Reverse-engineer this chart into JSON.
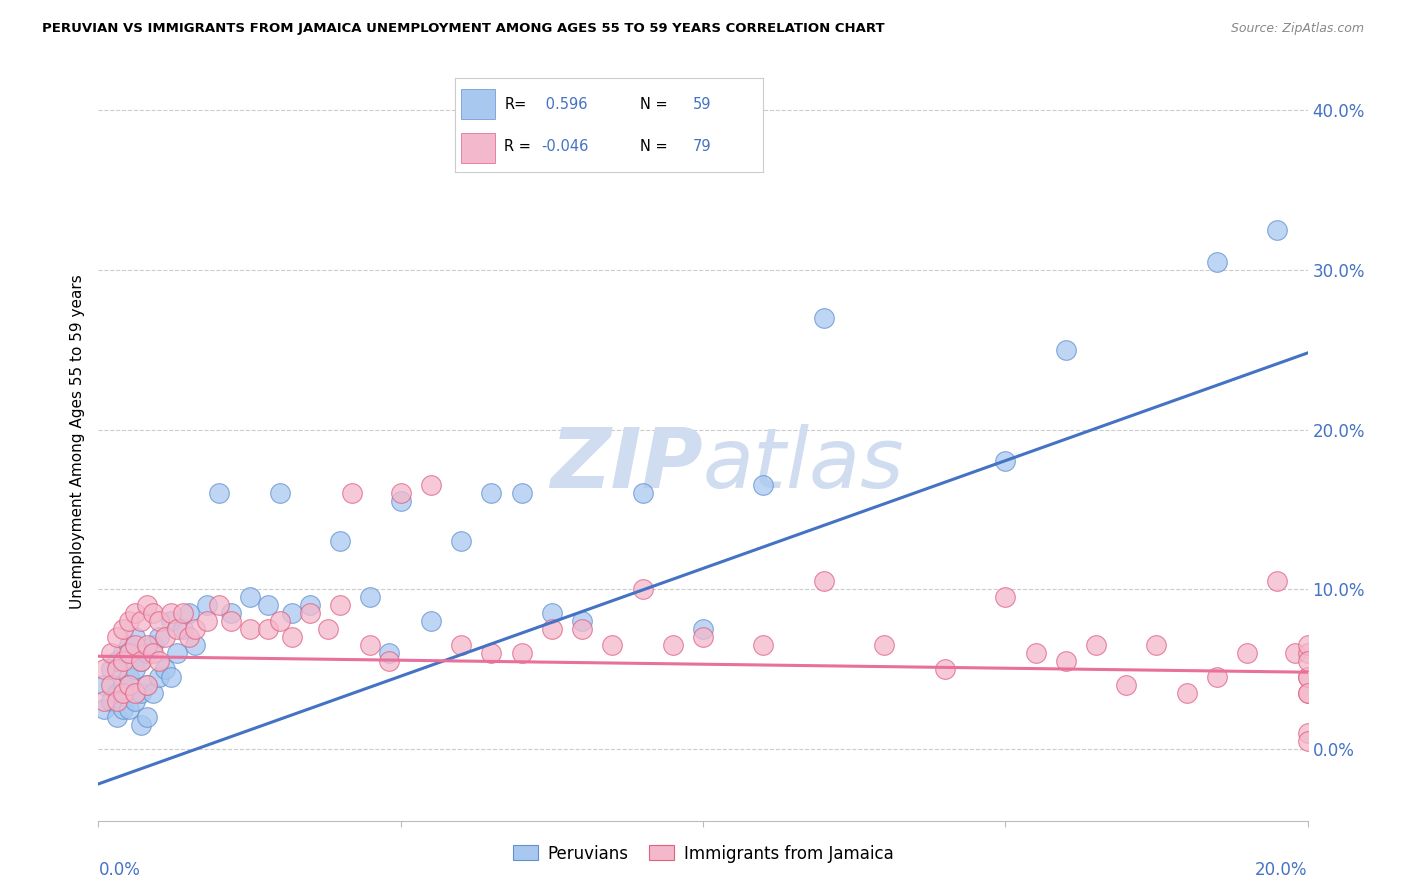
{
  "title": "PERUVIAN VS IMMIGRANTS FROM JAMAICA UNEMPLOYMENT AMONG AGES 55 TO 59 YEARS CORRELATION CHART",
  "source": "Source: ZipAtlas.com",
  "ylabel": "Unemployment Among Ages 55 to 59 years",
  "legend_label1": "Peruvians",
  "legend_label2": "Immigrants from Jamaica",
  "R1": 0.596,
  "N1": 59,
  "R2": -0.046,
  "N2": 79,
  "color_blue": "#A8C8F0",
  "color_pink": "#F4B8CC",
  "color_blue_edge": "#6090D0",
  "color_pink_edge": "#E06080",
  "color_line_blue": "#4472C4",
  "color_line_pink": "#E8709A",
  "watermark_color": "#D0DCF0",
  "xmin": 0.0,
  "xmax": 0.2,
  "ymin": -0.045,
  "ymax": 0.43,
  "yticks_right": [
    0.0,
    0.1,
    0.2,
    0.3,
    0.4
  ],
  "ytick_labels_right": [
    "0.0%",
    "10.0%",
    "20.0%",
    "30.0%",
    "40.0%"
  ],
  "blue_slope": 1.35,
  "blue_intercept": -0.022,
  "pink_slope": -0.05,
  "pink_intercept": 0.058,
  "blue_x": [
    0.001,
    0.001,
    0.002,
    0.002,
    0.003,
    0.003,
    0.003,
    0.004,
    0.004,
    0.004,
    0.005,
    0.005,
    0.005,
    0.006,
    0.006,
    0.006,
    0.007,
    0.007,
    0.007,
    0.008,
    0.008,
    0.008,
    0.009,
    0.009,
    0.01,
    0.01,
    0.011,
    0.012,
    0.012,
    0.013,
    0.014,
    0.015,
    0.016,
    0.018,
    0.02,
    0.022,
    0.025,
    0.028,
    0.03,
    0.032,
    0.035,
    0.04,
    0.045,
    0.048,
    0.05,
    0.055,
    0.06,
    0.065,
    0.07,
    0.075,
    0.08,
    0.09,
    0.1,
    0.11,
    0.12,
    0.15,
    0.16,
    0.185,
    0.195
  ],
  "blue_y": [
    0.04,
    0.025,
    0.05,
    0.03,
    0.055,
    0.035,
    0.02,
    0.06,
    0.04,
    0.025,
    0.065,
    0.045,
    0.025,
    0.07,
    0.05,
    0.03,
    0.055,
    0.035,
    0.015,
    0.06,
    0.04,
    0.02,
    0.065,
    0.035,
    0.07,
    0.045,
    0.05,
    0.08,
    0.045,
    0.06,
    0.075,
    0.085,
    0.065,
    0.09,
    0.16,
    0.085,
    0.095,
    0.09,
    0.16,
    0.085,
    0.09,
    0.13,
    0.095,
    0.06,
    0.155,
    0.08,
    0.13,
    0.16,
    0.16,
    0.085,
    0.08,
    0.16,
    0.075,
    0.165,
    0.27,
    0.18,
    0.25,
    0.305,
    0.325
  ],
  "pink_x": [
    0.001,
    0.001,
    0.002,
    0.002,
    0.003,
    0.003,
    0.003,
    0.004,
    0.004,
    0.004,
    0.005,
    0.005,
    0.005,
    0.006,
    0.006,
    0.006,
    0.007,
    0.007,
    0.008,
    0.008,
    0.008,
    0.009,
    0.009,
    0.01,
    0.01,
    0.011,
    0.012,
    0.013,
    0.014,
    0.015,
    0.016,
    0.018,
    0.02,
    0.022,
    0.025,
    0.028,
    0.03,
    0.032,
    0.035,
    0.038,
    0.04,
    0.042,
    0.045,
    0.048,
    0.05,
    0.055,
    0.06,
    0.065,
    0.07,
    0.075,
    0.08,
    0.085,
    0.09,
    0.095,
    0.1,
    0.11,
    0.12,
    0.13,
    0.14,
    0.15,
    0.155,
    0.16,
    0.165,
    0.17,
    0.175,
    0.18,
    0.185,
    0.19,
    0.195,
    0.198,
    0.2,
    0.2,
    0.2,
    0.2,
    0.2,
    0.2,
    0.2,
    0.2,
    0.2
  ],
  "pink_y": [
    0.05,
    0.03,
    0.06,
    0.04,
    0.07,
    0.05,
    0.03,
    0.075,
    0.055,
    0.035,
    0.08,
    0.06,
    0.04,
    0.085,
    0.065,
    0.035,
    0.08,
    0.055,
    0.09,
    0.065,
    0.04,
    0.085,
    0.06,
    0.08,
    0.055,
    0.07,
    0.085,
    0.075,
    0.085,
    0.07,
    0.075,
    0.08,
    0.09,
    0.08,
    0.075,
    0.075,
    0.08,
    0.07,
    0.085,
    0.075,
    0.09,
    0.16,
    0.065,
    0.055,
    0.16,
    0.165,
    0.065,
    0.06,
    0.06,
    0.075,
    0.075,
    0.065,
    0.1,
    0.065,
    0.07,
    0.065,
    0.105,
    0.065,
    0.05,
    0.095,
    0.06,
    0.055,
    0.065,
    0.04,
    0.065,
    0.035,
    0.045,
    0.06,
    0.105,
    0.06,
    0.035,
    0.045,
    0.06,
    0.065,
    0.045,
    0.01,
    0.035,
    0.055,
    0.005
  ]
}
